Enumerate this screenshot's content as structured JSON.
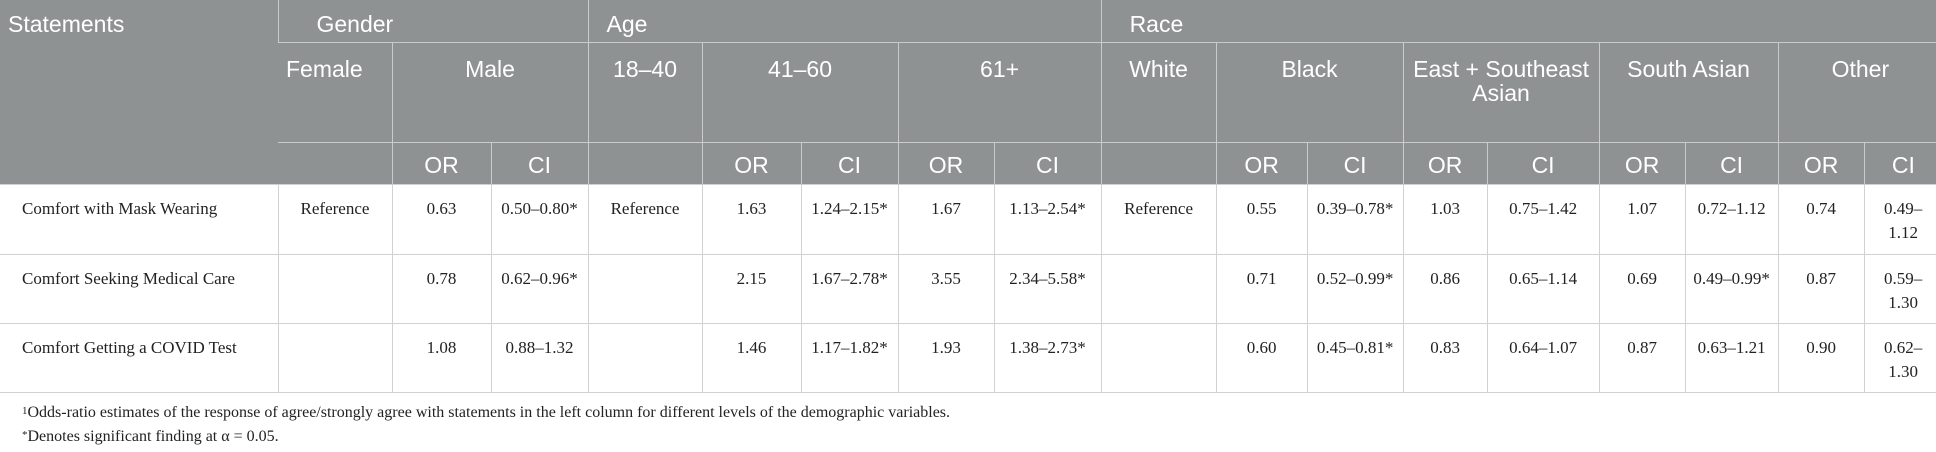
{
  "header": {
    "statements": "Statements",
    "groups": {
      "gender": "Gender",
      "age": "Age",
      "race": "Race"
    },
    "levels": {
      "female": "Female",
      "male": "Male",
      "age1": "18–40",
      "age2": "41–60",
      "age3": "61+",
      "white": "White",
      "black": "Black",
      "east": "East + Southeast Asian",
      "south": "South Asian",
      "other": "Other"
    },
    "or": "OR",
    "ci": "CI"
  },
  "rows": [
    {
      "label": "Comfort with Mask Wearing",
      "cells": [
        "Reference",
        "0.63",
        "0.50–0.80*",
        "Reference",
        "1.63",
        "1.24–2.15*",
        "1.67",
        "1.13–2.54*",
        "Reference",
        "0.55",
        "0.39–0.78*",
        "1.03",
        "0.75–1.42",
        "1.07",
        "0.72–1.12",
        "0.74",
        "0.49–1.12"
      ]
    },
    {
      "label": "Comfort Seeking Medical Care",
      "cells": [
        "",
        "0.78",
        "0.62–0.96*",
        "",
        "2.15",
        "1.67–2.78*",
        "3.55",
        "2.34–5.58*",
        "",
        "0.71",
        "0.52–0.99*",
        "0.86",
        "0.65–1.14",
        "0.69",
        "0.49–0.99*",
        "0.87",
        "0.59–1.30"
      ]
    },
    {
      "label": "Comfort Getting a COVID Test",
      "cells": [
        "",
        "1.08",
        "0.88–1.32",
        "",
        "1.46",
        "1.17–1.82*",
        "1.93",
        "1.38–2.73*",
        "",
        "0.60",
        "0.45–0.81*",
        "0.83",
        "0.64–1.07",
        "0.87",
        "0.63–1.21",
        "0.90",
        "0.62–1.30"
      ]
    }
  ],
  "footnotes": {
    "note1_marker": "1",
    "note1": "Odds-ratio estimates of the response of agree/strongly agree with statements in the left column for different levels of the demographic variables.",
    "note2_marker": "*",
    "note2": "Denotes significant finding at α = 0.05."
  }
}
